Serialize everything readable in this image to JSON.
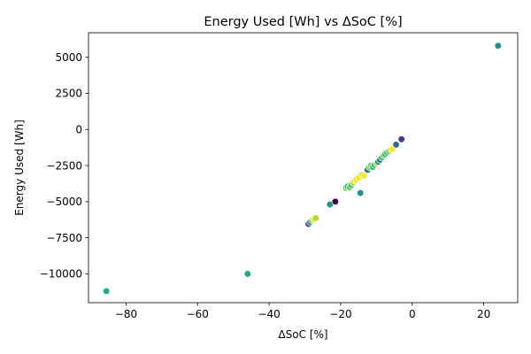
{
  "chart_data": {
    "type": "scatter",
    "title": "Energy Used [Wh] vs ΔSoC [%]",
    "xlabel": "ΔSoC [%]",
    "ylabel": "Energy Used [Wh]",
    "xlim": [
      -90.5,
      29.5
    ],
    "ylim": [
      -12000,
      6700
    ],
    "xticks": [
      -80,
      -60,
      -40,
      -20,
      0,
      20
    ],
    "xtick_labels": [
      "−80",
      "−60",
      "−40",
      "−20",
      "0",
      "20"
    ],
    "yticks": [
      -10000,
      -7500,
      -5000,
      -2500,
      0,
      2500,
      5000
    ],
    "ytick_labels": [
      "−10000",
      "−7500",
      "−5000",
      "−2500",
      "0",
      "2500",
      "5000"
    ],
    "grid": false,
    "legend": false,
    "colormap": "viridis",
    "points": [
      {
        "x": 24,
        "y": 5800,
        "color": "#21918c"
      },
      {
        "x": -85.5,
        "y": -11200,
        "color": "#22a884"
      },
      {
        "x": -46,
        "y": -10000,
        "color": "#22a884"
      },
      {
        "x": -29,
        "y": -6550,
        "color": "#3b528b"
      },
      {
        "x": -28.5,
        "y": -6400,
        "color": "#2a788e"
      },
      {
        "x": -28,
        "y": -6300,
        "color": "#5ec962"
      },
      {
        "x": -27.5,
        "y": -6250,
        "color": "#fde725"
      },
      {
        "x": -27,
        "y": -6150,
        "color": "#b5de2b"
      },
      {
        "x": -23,
        "y": -5200,
        "color": "#21918c"
      },
      {
        "x": -21.5,
        "y": -5000,
        "color": "#440154"
      },
      {
        "x": -18.5,
        "y": -4050,
        "color": "#7ad151"
      },
      {
        "x": -18,
        "y": -3950,
        "color": "#22a884"
      },
      {
        "x": -17.5,
        "y": -4000,
        "color": "#5ec962"
      },
      {
        "x": -17,
        "y": -3850,
        "color": "#35b779"
      },
      {
        "x": -16.5,
        "y": -3700,
        "color": "#b5de2b"
      },
      {
        "x": -16,
        "y": -3550,
        "color": "#fde725"
      },
      {
        "x": -15.5,
        "y": -3450,
        "color": "#d8e219"
      },
      {
        "x": -15,
        "y": -3350,
        "color": "#fde725"
      },
      {
        "x": -14.5,
        "y": -4400,
        "color": "#21918c"
      },
      {
        "x": -14,
        "y": -3150,
        "color": "#b5de2b"
      },
      {
        "x": -13.5,
        "y": -3200,
        "color": "#fde725"
      },
      {
        "x": -12.5,
        "y": -2800,
        "color": "#2a788e"
      },
      {
        "x": -12,
        "y": -2600,
        "color": "#7ad151"
      },
      {
        "x": -11.5,
        "y": -2500,
        "color": "#5ec962"
      },
      {
        "x": -11,
        "y": -2600,
        "color": "#35b779"
      },
      {
        "x": -10.5,
        "y": -2450,
        "color": "#22a884"
      },
      {
        "x": -10,
        "y": -2350,
        "color": "#b5de2b"
      },
      {
        "x": -9.5,
        "y": -2250,
        "color": "#21918c"
      },
      {
        "x": -9,
        "y": -2100,
        "color": "#2a788e"
      },
      {
        "x": -8.5,
        "y": -1950,
        "color": "#35b779"
      },
      {
        "x": -8,
        "y": -1800,
        "color": "#7ad151"
      },
      {
        "x": -7.5,
        "y": -1700,
        "color": "#22a884"
      },
      {
        "x": -7,
        "y": -1600,
        "color": "#35b779"
      },
      {
        "x": -6.5,
        "y": -1500,
        "color": "#5ec962"
      },
      {
        "x": -6,
        "y": -1400,
        "color": "#d8e219"
      },
      {
        "x": -5.5,
        "y": -1350,
        "color": "#fde725"
      },
      {
        "x": -4.5,
        "y": -1050,
        "color": "#31688e"
      },
      {
        "x": -3,
        "y": -680,
        "color": "#443983"
      }
    ]
  }
}
